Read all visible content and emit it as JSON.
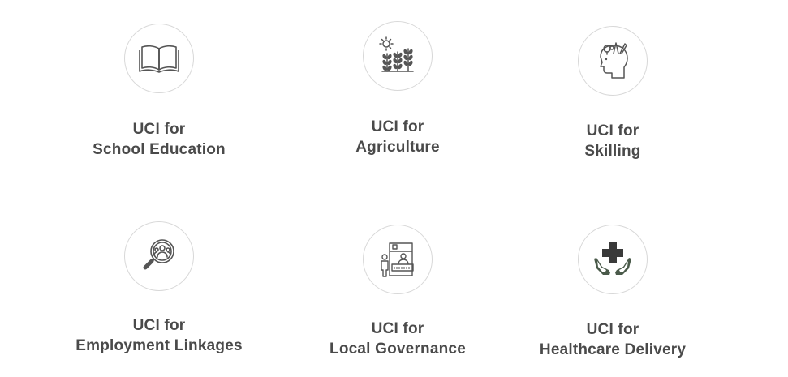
{
  "items": [
    {
      "line1": "UCI for",
      "line2": "School Education",
      "icon": "open-book-icon"
    },
    {
      "line1": "UCI for",
      "line2": "Agriculture",
      "icon": "crops-sun-icon"
    },
    {
      "line1": "UCI for",
      "line2": "Skilling",
      "icon": "head-ideas-icon"
    },
    {
      "line1": "UCI for",
      "line2": "Employment Linkages",
      "icon": "magnifier-people-icon"
    },
    {
      "line1": "UCI for",
      "line2": "Local Governance",
      "icon": "service-desk-icon"
    },
    {
      "line1": "UCI for",
      "line2": "Healthcare Delivery",
      "icon": "hands-medical-cross-icon"
    }
  ],
  "colors": {
    "text": "#4a4a4a",
    "icon_stroke": "#555555",
    "cross": "#3a3a3a",
    "hands": "#4a5a4a",
    "circle_border": "#d8d8d8"
  }
}
